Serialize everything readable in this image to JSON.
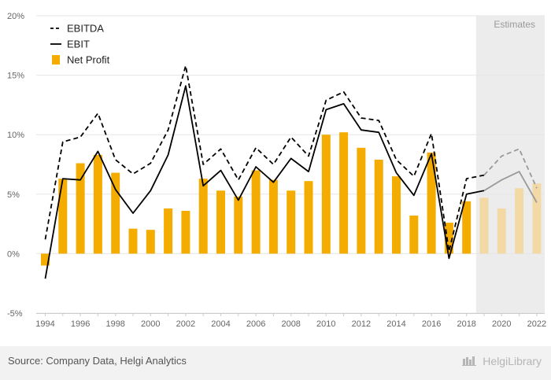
{
  "chart_data": {
    "type": "bar",
    "categories": [
      "1994",
      "1995",
      "1996",
      "1997",
      "1998",
      "1999",
      "2000",
      "2001",
      "2002",
      "2003",
      "2004",
      "2005",
      "2006",
      "2007",
      "2008",
      "2009",
      "2010",
      "2011",
      "2012",
      "2013",
      "2014",
      "2015",
      "2016",
      "2017",
      "2018",
      "2019",
      "2020",
      "2021",
      "2022"
    ],
    "x_tick_labels": [
      "1994",
      "1996",
      "1998",
      "2000",
      "2002",
      "2004",
      "2006",
      "2008",
      "2010",
      "2012",
      "2014",
      "2016",
      "2018",
      "2020",
      "2022"
    ],
    "y_tick_labels": [
      "20%",
      "15%",
      "10%",
      "5%",
      "0%",
      "-5%"
    ],
    "ylim": [
      -5,
      20
    ],
    "grid": true,
    "legend_position": "top-left",
    "estimates_label": "Estimates",
    "estimates_from": "2019",
    "series": [
      {
        "name": "EBITDA",
        "style": "dashed-line",
        "color": "#000000",
        "values": [
          1.2,
          9.4,
          9.8,
          11.8,
          7.9,
          6.7,
          7.6,
          10.4,
          15.8,
          7.5,
          8.8,
          6.2,
          8.9,
          7.5,
          9.8,
          8.2,
          12.9,
          13.6,
          11.4,
          11.2,
          7.9,
          6.5,
          10.1,
          0.2,
          6.3,
          6.6,
          8.2,
          8.8,
          5.5
        ]
      },
      {
        "name": "EBIT",
        "style": "solid-line",
        "color": "#000000",
        "values": [
          -2.1,
          6.3,
          6.2,
          8.6,
          5.4,
          3.4,
          5.3,
          8.3,
          14.1,
          5.7,
          7.0,
          4.5,
          7.3,
          6.0,
          8.0,
          6.9,
          12.1,
          12.6,
          10.4,
          10.2,
          6.8,
          4.9,
          8.4,
          -0.4,
          5.0,
          5.3,
          6.2,
          6.9,
          4.3
        ]
      },
      {
        "name": "Net Profit",
        "style": "bar",
        "color": "#f5ac00",
        "estimate_color": "#f3d9a6",
        "values": [
          -1.0,
          6.3,
          7.6,
          8.3,
          6.8,
          2.1,
          2.0,
          3.8,
          3.6,
          6.3,
          5.3,
          4.8,
          7.0,
          6.2,
          5.3,
          6.1,
          10.0,
          10.2,
          8.9,
          7.9,
          6.5,
          3.2,
          8.5,
          2.6,
          4.4,
          4.7,
          3.8,
          5.5,
          5.9
        ]
      }
    ]
  },
  "footer": {
    "source": "Source: Company Data, Helgi Analytics",
    "brand": "HelgiLibrary"
  },
  "colors": {
    "grid": "#e6e6e6",
    "axis": "#cccccc",
    "estimates_bg": "#ececec",
    "actual_line": "#000000",
    "estimate_line": "#999999"
  }
}
